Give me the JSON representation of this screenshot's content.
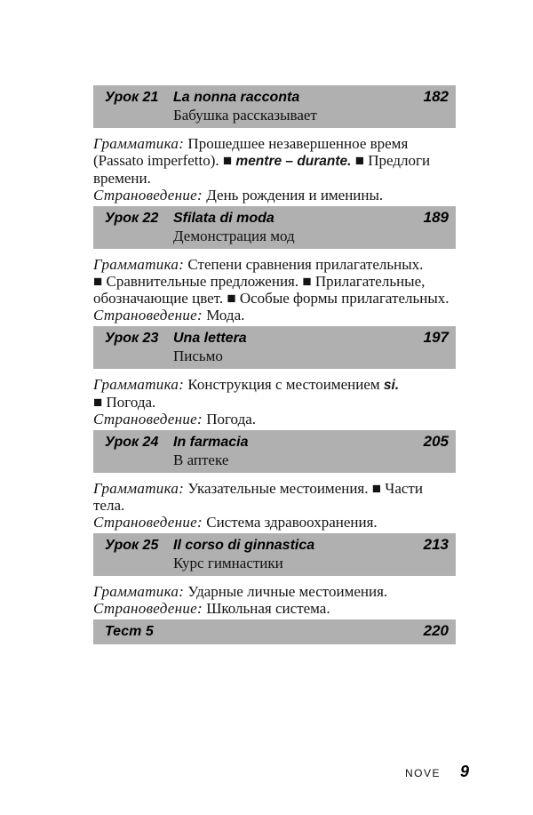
{
  "colors": {
    "bar_gray": "#b0b0b0",
    "text": "#141414"
  },
  "footer": {
    "word": "NOVE",
    "page_number": "9"
  },
  "toc": {
    "entries": [
      {
        "type": "lesson",
        "label": "Урок 21",
        "title": "La nonna racconta",
        "subtitle": "Бабушка рассказывает",
        "page": "182",
        "paragraphs": [
          {
            "name": "grammar-note",
            "segments": [
              {
                "t": "Грамматика:",
                "s": "label"
              },
              {
                "t": " Прошедшее незавершенное время (Passato imperfetto). ■ ",
                "s": "text"
              },
              {
                "t": "mentre – durante.",
                "s": "term"
              },
              {
                "t": " ■ Предлоги времени.",
                "s": "text"
              }
            ]
          },
          {
            "name": "culture-note",
            "segments": [
              {
                "t": "Страноведение:",
                "s": "label"
              },
              {
                "t": " День рождения и именины.",
                "s": "text"
              }
            ]
          }
        ]
      },
      {
        "type": "lesson",
        "label": "Урок 22",
        "title": "Sfilata di moda",
        "subtitle": "Демонстрация мод",
        "page": "189",
        "paragraphs": [
          {
            "name": "grammar-note",
            "segments": [
              {
                "t": "Грамматика:",
                "s": "label"
              },
              {
                "t": " Степени сравнения прилагательных. ■ Сравнительные предложения. ■ Прилагательные, обозначающие цвет. ■ Особые формы прилагатель­ных.",
                "s": "text"
              }
            ]
          },
          {
            "name": "culture-note",
            "segments": [
              {
                "t": "Страноведение:",
                "s": "label"
              },
              {
                "t": " Мода.",
                "s": "text"
              }
            ]
          }
        ]
      },
      {
        "type": "lesson",
        "label": "Урок 23",
        "title": "Una lettera",
        "subtitle": "Письмо",
        "page": "197",
        "paragraphs": [
          {
            "name": "grammar-note",
            "segments": [
              {
                "t": "Грамматика:",
                "s": "label"
              },
              {
                "t": " Конструкция с местоимением ",
                "s": "text"
              },
              {
                "t": "si.",
                "s": "term"
              },
              {
                "t": " ■ Погода.",
                "s": "text"
              }
            ]
          },
          {
            "name": "culture-note",
            "segments": [
              {
                "t": "Страноведение:",
                "s": "label"
              },
              {
                "t": " Погода.",
                "s": "text"
              }
            ]
          }
        ]
      },
      {
        "type": "lesson",
        "label": "Урок 24",
        "title": "In farmacia",
        "subtitle": "В аптеке",
        "page": "205",
        "paragraphs": [
          {
            "name": "grammar-note",
            "segments": [
              {
                "t": "Грамматика:",
                "s": "label"
              },
              {
                "t": " Указательные местоимения. ■ Части тела.",
                "s": "text"
              }
            ]
          },
          {
            "name": "culture-note",
            "segments": [
              {
                "t": "Страноведение:",
                "s": "label"
              },
              {
                "t": " Система здравоохранения.",
                "s": "text"
              }
            ]
          }
        ]
      },
      {
        "type": "lesson",
        "label": "Урок 25",
        "title": "Il corso di ginnastica",
        "subtitle": "Курс гимнастики",
        "page": "213",
        "paragraphs": [
          {
            "name": "grammar-note",
            "segments": [
              {
                "t": "Грамматика:",
                "s": "label"
              },
              {
                "t": " Ударные личные местоимения.",
                "s": "text"
              }
            ]
          },
          {
            "name": "culture-note",
            "segments": [
              {
                "t": "Страноведение:",
                "s": "label"
              },
              {
                "t": " Школьная система.",
                "s": "text"
              }
            ]
          }
        ]
      },
      {
        "type": "test",
        "label": "Тест 5",
        "title": "",
        "subtitle": "",
        "page": "220",
        "paragraphs": []
      }
    ]
  }
}
